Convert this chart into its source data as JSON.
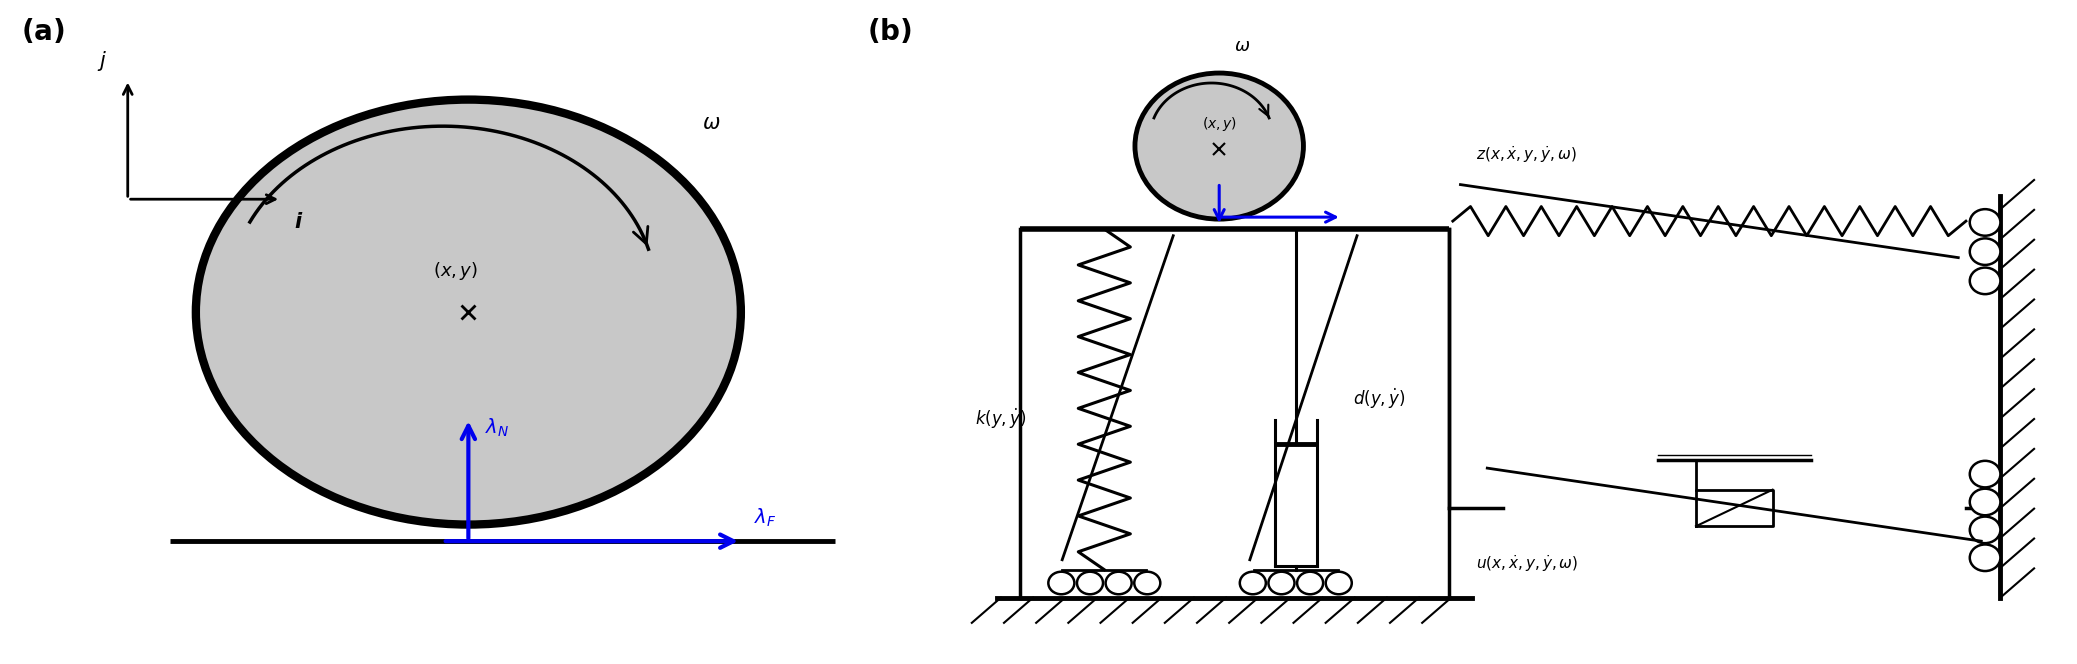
{
  "fig_width": 20.77,
  "fig_height": 6.64,
  "dpi": 100,
  "background_color": "#ffffff",
  "ball_color": "#c8c8c8",
  "ball_edge_color": "#000000",
  "blue_color": "#0000ee"
}
